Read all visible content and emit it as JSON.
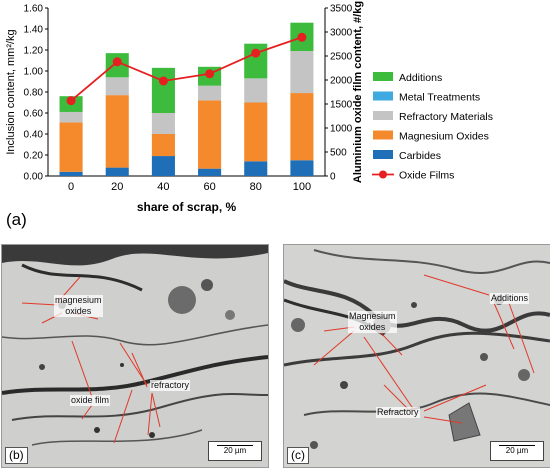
{
  "chart_data": {
    "type": "bar",
    "categories": [
      "0",
      "20",
      "40",
      "60",
      "80",
      "100"
    ],
    "xlabel": "share of scrap, %",
    "ylabel": "Inclusion content, mm²/kg",
    "y2label": "Aluminium oxide film content, #/kg",
    "ylim": [
      0,
      1.6
    ],
    "y2lim": [
      0,
      3500
    ],
    "yticks": [
      "0.00",
      "0.20",
      "0.40",
      "0.60",
      "0.80",
      "1.00",
      "1.20",
      "1.40",
      "1.60"
    ],
    "y2ticks": [
      "0",
      "500",
      "1000",
      "1500",
      "2000",
      "2500",
      "3000",
      "3500"
    ],
    "stacked": true,
    "series": [
      {
        "name": "Carbides",
        "color": "#1f6fb8",
        "values": [
          0.04,
          0.08,
          0.19,
          0.07,
          0.14,
          0.15
        ]
      },
      {
        "name": "Magnesium Oxides",
        "color": "#f58a2c",
        "values": [
          0.47,
          0.69,
          0.21,
          0.65,
          0.56,
          0.64
        ]
      },
      {
        "name": "Refractory Materials",
        "color": "#c4c4c4",
        "values": [
          0.1,
          0.17,
          0.2,
          0.14,
          0.23,
          0.4
        ]
      },
      {
        "name": "Metal Treatments",
        "color": "#3fa9e0",
        "values": [
          0.0,
          0.0,
          0.0,
          0.0,
          0.0,
          0.0
        ]
      },
      {
        "name": "Additions",
        "color": "#3dbb3d",
        "values": [
          0.15,
          0.23,
          0.43,
          0.18,
          0.33,
          0.27
        ]
      }
    ],
    "line_series": {
      "name": "Oxide Films",
      "color": "#e62020",
      "values": [
        1570,
        2380,
        1980,
        2130,
        2560,
        2890
      ]
    },
    "legend_order": [
      "Additions",
      "Metal Treatments",
      "Refractory Materials",
      "Magnesium Oxides",
      "Carbides",
      "Oxide Films"
    ],
    "legend_position": "right",
    "grid": false
  },
  "panel_a_label": "(a)",
  "micrograph_b": {
    "tag": "(b)",
    "scale": "20 µm",
    "labels": {
      "mg": "magnesium\noxides",
      "ref": "refractory",
      "oxide": "oxide film"
    }
  },
  "micrograph_c": {
    "tag": "(c)",
    "scale": "20 µm",
    "labels": {
      "add": "Additions",
      "mg": "Magnesium\noxides",
      "ref": "Refractory"
    }
  }
}
